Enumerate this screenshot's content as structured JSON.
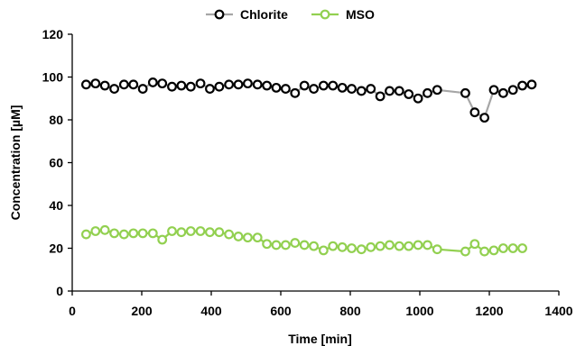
{
  "chart_data": {
    "type": "line",
    "title": "",
    "xlabel": "Time [min]",
    "ylabel": "Concentration [µM]",
    "xlim": [
      0,
      1400
    ],
    "ylim": [
      0,
      120
    ],
    "xticks": [
      0,
      200,
      400,
      600,
      800,
      1000,
      1200,
      1400
    ],
    "yticks": [
      0,
      20,
      40,
      60,
      80,
      100,
      120
    ],
    "grid": false,
    "legend_position": "top-center",
    "series": [
      {
        "name": "Chlorite",
        "line_color": "#a6a6a6",
        "marker_edge": "#000000",
        "marker_fill": "#ffffff",
        "x": [
          40,
          67,
          94,
          121,
          149,
          176,
          203,
          232,
          259,
          287,
          314,
          341,
          369,
          396,
          423,
          451,
          478,
          505,
          533,
          560,
          587,
          614,
          641,
          668,
          695,
          723,
          750,
          777,
          804,
          832,
          859,
          886,
          913,
          941,
          968,
          995,
          1022,
          1050,
          1131,
          1158,
          1186,
          1213,
          1240,
          1268,
          1295,
          1322
        ],
        "y": [
          96.5,
          97,
          96,
          94.5,
          96.5,
          96.5,
          94.5,
          97.5,
          97,
          95.5,
          96,
          95.5,
          97,
          94.5,
          95.5,
          96.5,
          96.5,
          97,
          96.5,
          96,
          95,
          94.5,
          92.5,
          96,
          94.5,
          96,
          96,
          95,
          94.5,
          93.5,
          94.5,
          91,
          93.5,
          93.5,
          92,
          90,
          92.5,
          94,
          92.5,
          83.5,
          81,
          94,
          92.5,
          94,
          96,
          96.5
        ]
      },
      {
        "name": "MSO",
        "line_color": "#92d050",
        "marker_edge": "#92d050",
        "marker_fill": "#ffffff",
        "x": [
          40,
          67,
          94,
          121,
          149,
          176,
          203,
          232,
          259,
          287,
          314,
          341,
          369,
          396,
          423,
          451,
          478,
          505,
          533,
          560,
          587,
          614,
          641,
          668,
          695,
          723,
          750,
          777,
          804,
          832,
          859,
          886,
          913,
          941,
          968,
          995,
          1022,
          1050,
          1131,
          1158,
          1186,
          1213,
          1240,
          1268,
          1295
        ],
        "y": [
          26.5,
          28,
          28.5,
          27,
          26.5,
          27,
          27,
          27,
          24,
          28,
          27.5,
          28,
          28,
          27.5,
          27.5,
          26.5,
          25.5,
          25,
          25,
          22,
          21.5,
          21.5,
          22.5,
          21.5,
          21,
          19,
          21,
          20.5,
          20,
          19.5,
          20.5,
          21,
          21.5,
          21,
          21,
          21.5,
          21.5,
          19.5,
          18.5,
          22,
          18.5,
          19,
          20,
          20,
          20
        ]
      }
    ]
  }
}
